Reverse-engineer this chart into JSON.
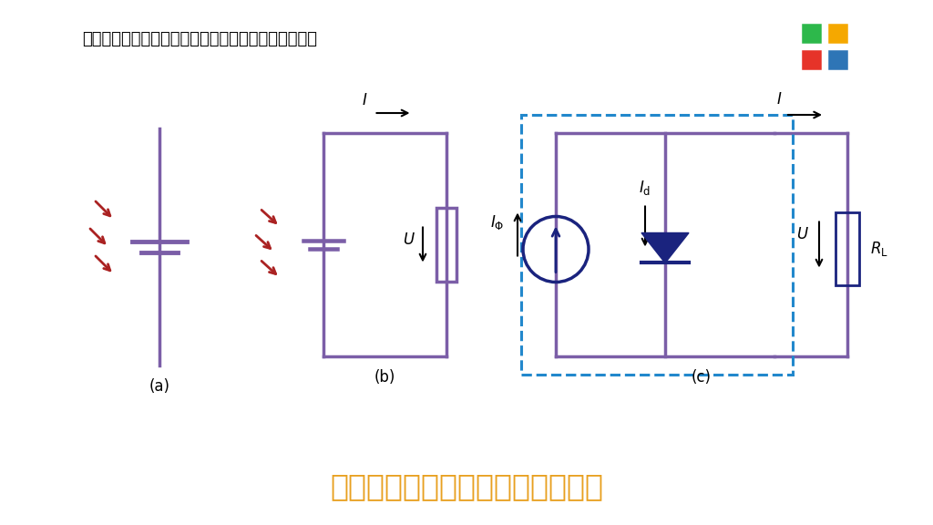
{
  "bg_color": "#ffffff",
  "title_text": "基本工作电路以及相应的等效电路",
  "title_color": "#e8a020",
  "title_fontsize": 24,
  "header_text": "光电池的表示符号、基本电路及等效电路如下图所示：",
  "header_fontsize": 13,
  "circuit_color": "#7b5ea7",
  "circuit_lw": 2.5,
  "arrow_color_red": "#aa2222",
  "label_a": "(a)",
  "label_b": "(b)",
  "label_c": "(c)",
  "dashed_box_color": "#2288cc",
  "current_source_color": "#1a237e",
  "diode_color": "#1a237e",
  "resistor_color": "#1a237e",
  "logo_colors": [
    [
      "#2db84b",
      "#f5a800"
    ],
    [
      "#e63329",
      "#2e75b6"
    ]
  ]
}
